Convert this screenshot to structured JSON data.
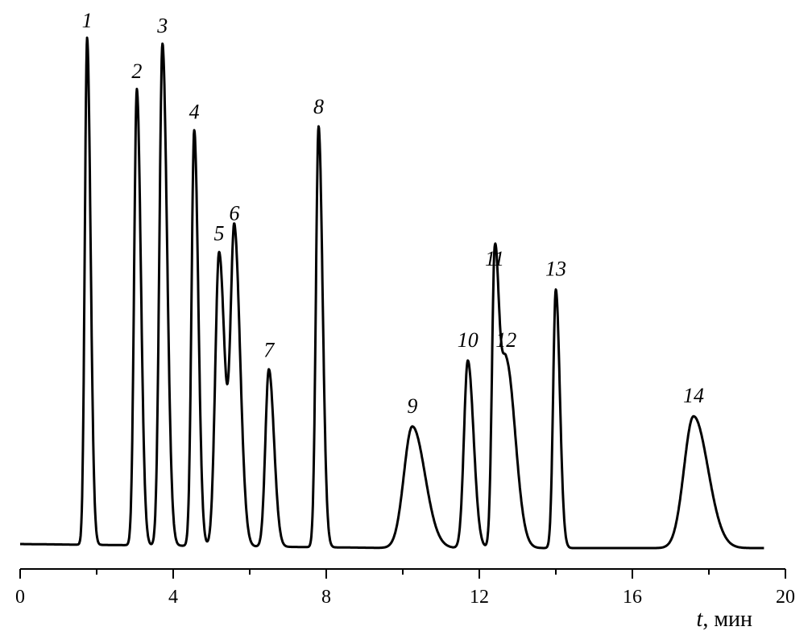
{
  "chart_data": {
    "type": "line",
    "title": "",
    "xlabel_symbol": "t",
    "xlabel_unit": ", мин",
    "ylabel": "",
    "xlim": [
      0,
      20
    ],
    "ylim": [
      0,
      100
    ],
    "grid": false,
    "x_ticks": [
      0,
      4,
      8,
      12,
      16,
      20
    ],
    "x_tick_labels": [
      "0",
      "4",
      "8",
      "12",
      "16",
      "20"
    ],
    "peaks": [
      {
        "label": "1",
        "t": 1.75,
        "height": 100
      },
      {
        "label": "2",
        "t": 3.05,
        "height": 90
      },
      {
        "label": "3",
        "t": 3.72,
        "height": 99
      },
      {
        "label": "4",
        "t": 4.55,
        "height": 82
      },
      {
        "label": "5",
        "t": 5.2,
        "height": 58
      },
      {
        "label": "6",
        "t": 5.6,
        "height": 62
      },
      {
        "label": "7",
        "t": 6.5,
        "height": 35
      },
      {
        "label": "8",
        "t": 7.8,
        "height": 83
      },
      {
        "label": "9",
        "t": 10.25,
        "height": 24
      },
      {
        "label": "10",
        "t": 11.7,
        "height": 37
      },
      {
        "label": "11",
        "t": 12.4,
        "height": 53
      },
      {
        "label": "12",
        "t": 12.7,
        "height": 37
      },
      {
        "label": "13",
        "t": 14.0,
        "height": 51
      },
      {
        "label": "14",
        "t": 17.6,
        "height": 26
      }
    ]
  }
}
